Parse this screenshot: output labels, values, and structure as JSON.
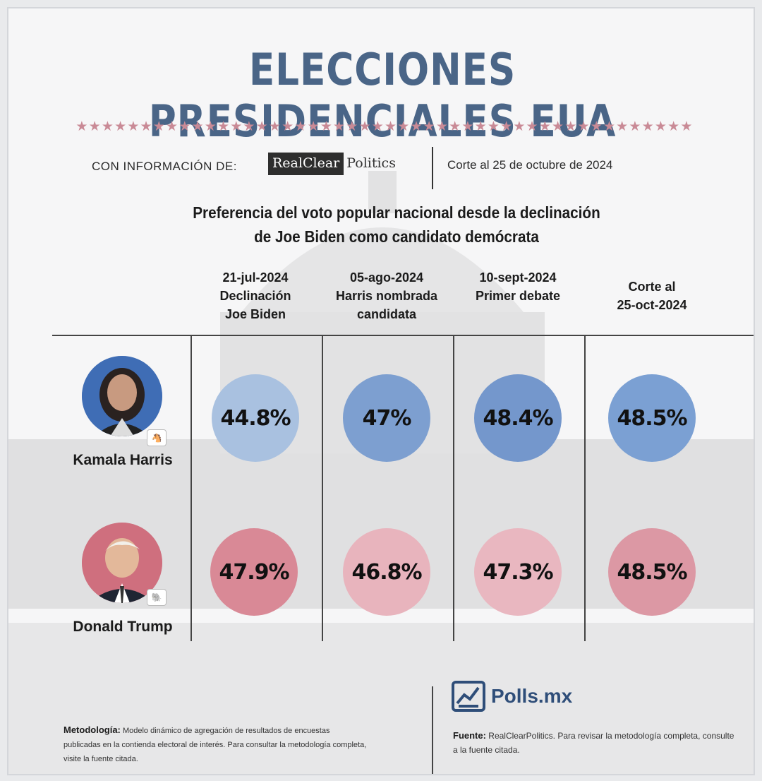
{
  "title": "ELECCIONES PRESIDENCIALES EUA",
  "decor_stars": "★★★★★★★★★★★★★★★★★★★★★★★★★★★★★★★★★★★★★★★★★★★★★★★★",
  "source": {
    "label": "CON INFORMACIÓN DE:",
    "logo_part1": "RealClear",
    "logo_part2": "Politics",
    "cutoff": "Corte al 25 de octubre de 2024"
  },
  "subtitle_line1": "Preferencia del voto popular nacional desde la declinación",
  "subtitle_line2": "de Joe Biden como candidato demócrata",
  "columns": [
    {
      "l1": "21-jul-2024",
      "l2": "Declinación",
      "l3": "Joe Biden"
    },
    {
      "l1": "05-ago-2024",
      "l2": "Harris nombrada",
      "l3": "candidata"
    },
    {
      "l1": "10-sept-2024",
      "l2": "Primer debate",
      "l3": ""
    },
    {
      "l1": "Corte al",
      "l2": "25-oct-2024",
      "l3": ""
    }
  ],
  "candidates": [
    {
      "name": "Kamala Harris",
      "party_icon": "donkey-icon",
      "color": "#6f93c8",
      "values": [
        "44.8%",
        "47%",
        "48.4%",
        "48.5%"
      ],
      "fills": [
        "#a9c1e0",
        "#7d9fd0",
        "#7497cc",
        "#7ba0d3"
      ]
    },
    {
      "name": "Donald Trump",
      "party_icon": "elephant-icon",
      "color": "#cf6f7e",
      "values": [
        "47.9%",
        "46.8%",
        "47.3%",
        "48.5%"
      ],
      "fills": [
        "#d98996",
        "#e8b4bd",
        "#e9b7c0",
        "#dc98a4"
      ]
    }
  ],
  "brand": "Polls.mx",
  "methodology": {
    "label": "Metodología:",
    "text": "Modelo dinámico de agregación de resultados de encuestas publicadas en la contienda electoral de interés. Para consultar la metodología completa, visite la fuente citada."
  },
  "footer_source": {
    "label": "Fuente:",
    "text": "RealClearPolitics. Para revisar la metodología completa, consulte a la fuente citada."
  }
}
